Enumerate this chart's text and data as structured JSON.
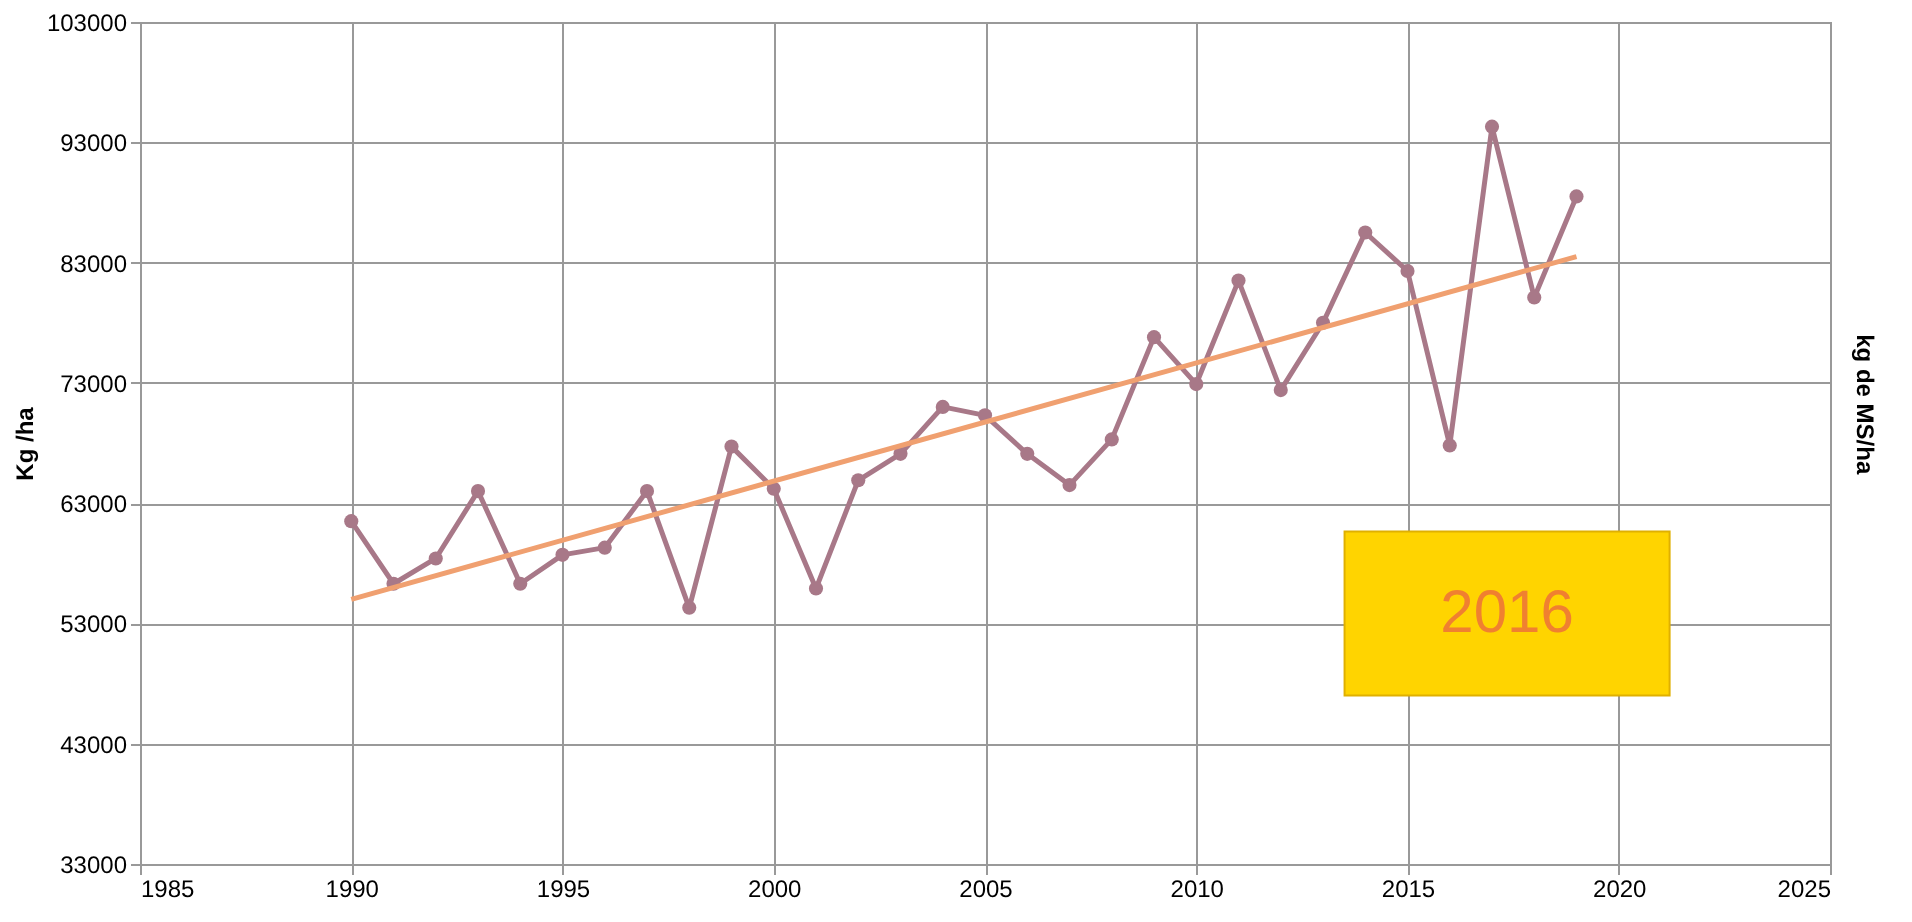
{
  "chart_data": {
    "type": "line",
    "ylabel": "Kg /ha",
    "y2label": "kg de MS/ha",
    "xlim": [
      1985,
      2025
    ],
    "xticks": [
      1985,
      1990,
      1995,
      2000,
      2005,
      2010,
      2015,
      2020,
      2025
    ],
    "ylim": [
      33000,
      103000
    ],
    "yticks": [
      33000,
      43000,
      53000,
      63000,
      73000,
      83000,
      93000,
      103000
    ],
    "grid": true,
    "marker": "circle",
    "line_style": "solid",
    "x": [
      1990,
      1991,
      1992,
      1993,
      1994,
      1995,
      1996,
      1997,
      1998,
      1999,
      2000,
      2001,
      2002,
      2003,
      2004,
      2005,
      2006,
      2007,
      2008,
      2009,
      2010,
      2011,
      2012,
      2013,
      2014,
      2015,
      2016,
      2017,
      2018,
      2019
    ],
    "series": [
      {
        "color": "#a87888",
        "values": [
          61500,
          56300,
          58400,
          64000,
          56300,
          58700,
          59300,
          64000,
          54300,
          67700,
          64200,
          55900,
          64900,
          67100,
          71000,
          70300,
          67100,
          64500,
          68300,
          76800,
          72900,
          81500,
          72400,
          78000,
          85500,
          82300,
          67800,
          94300,
          80100,
          88500
        ]
      },
      {
        "type": "line",
        "marker": "none",
        "color": "#f0a070",
        "x": [
          1990,
          2019
        ],
        "values": [
          55000,
          83500
        ]
      }
    ],
    "annotations": [
      "2016"
    ]
  }
}
